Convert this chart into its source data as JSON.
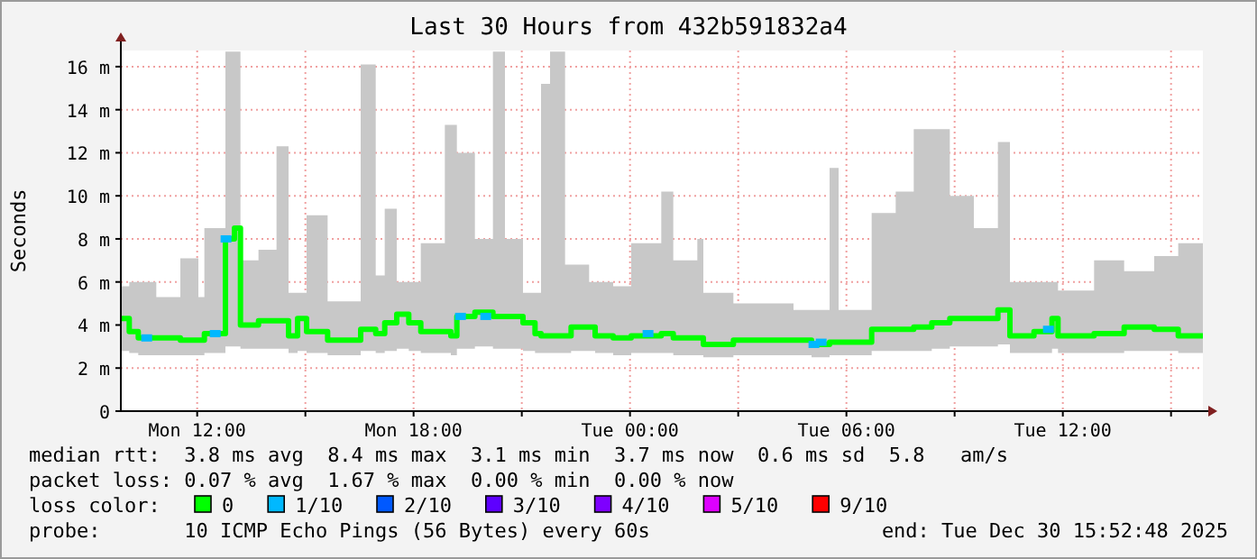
{
  "chart_data": {
    "type": "step",
    "title": "Last 30 Hours from 432b591832a4",
    "ylabel": "Seconds",
    "xlim": [
      "2025-12-29T09:53",
      "2025-12-30T15:53"
    ],
    "xticks": [
      {
        "value": "2025-12-29T12:00",
        "label": "Mon 12:00"
      },
      {
        "value": "2025-12-29T15:00",
        "label": null
      },
      {
        "value": "2025-12-29T18:00",
        "label": "Mon 18:00"
      },
      {
        "value": "2025-12-29T21:00",
        "label": null
      },
      {
        "value": "2025-12-30T00:00",
        "label": "Tue 00:00"
      },
      {
        "value": "2025-12-30T03:00",
        "label": null
      },
      {
        "value": "2025-12-30T06:00",
        "label": "Tue 06:00"
      },
      {
        "value": "2025-12-30T09:00",
        "label": null
      },
      {
        "value": "2025-12-30T12:00",
        "label": "Tue 12:00"
      },
      {
        "value": "2025-12-30T15:00",
        "label": null
      }
    ],
    "ylim": [
      0,
      16.75
    ],
    "yticks": [
      {
        "value": 0,
        "label": "0"
      },
      {
        "value": 2,
        "label": "2 m"
      },
      {
        "value": 4,
        "label": "4 m"
      },
      {
        "value": 6,
        "label": "6 m"
      },
      {
        "value": 8,
        "label": "8 m"
      },
      {
        "value": 10,
        "label": "10 m"
      },
      {
        "value": 12,
        "label": "12 m"
      },
      {
        "value": 14,
        "label": "14 m"
      },
      {
        "value": 16,
        "label": "16 m"
      }
    ],
    "grid": true,
    "legend": "bottom",
    "series": [
      {
        "name": "0",
        "color": "#00ff00",
        "x": [
          "2025-12-29T09:53",
          "2025-12-29T10:07",
          "2025-12-29T10:22",
          "2025-12-29T10:52",
          "2025-12-29T11:32",
          "2025-12-29T12:02",
          "2025-12-29T12:12",
          "2025-12-29T12:47",
          "2025-12-29T13:02",
          "2025-12-29T13:12",
          "2025-12-29T13:42",
          "2025-12-29T14:12",
          "2025-12-29T14:32",
          "2025-12-29T14:47",
          "2025-12-29T15:02",
          "2025-12-29T15:37",
          "2025-12-29T16:32",
          "2025-12-29T16:57",
          "2025-12-29T17:12",
          "2025-12-29T17:32",
          "2025-12-29T17:52",
          "2025-12-29T18:12",
          "2025-12-29T18:52",
          "2025-12-29T19:02",
          "2025-12-29T19:12",
          "2025-12-29T19:42",
          "2025-12-29T20:12",
          "2025-12-29T20:32",
          "2025-12-29T21:02",
          "2025-12-29T21:22",
          "2025-12-29T21:32",
          "2025-12-29T21:47",
          "2025-12-29T22:12",
          "2025-12-29T22:22",
          "2025-12-29T22:52",
          "2025-12-29T23:02",
          "2025-12-29T23:32",
          "2025-12-30T00:02",
          "2025-12-30T00:52",
          "2025-12-30T01:12",
          "2025-12-30T01:52",
          "2025-12-30T02:02",
          "2025-12-30T02:52",
          "2025-12-30T03:52",
          "2025-12-30T04:32",
          "2025-12-30T05:02",
          "2025-12-30T05:32",
          "2025-12-30T05:47",
          "2025-12-30T06:42",
          "2025-12-30T07:22",
          "2025-12-30T07:52",
          "2025-12-30T08:22",
          "2025-12-30T08:52",
          "2025-12-30T09:32",
          "2025-12-30T10:12",
          "2025-12-30T10:32",
          "2025-12-30T11:12",
          "2025-12-30T11:42",
          "2025-12-30T11:52",
          "2025-12-30T12:52",
          "2025-12-30T13:42",
          "2025-12-30T14:32",
          "2025-12-30T15:12",
          "2025-12-30T15:53"
        ],
        "values": [
          4.3,
          3.7,
          3.4,
          3.4,
          3.3,
          3.3,
          3.6,
          8.0,
          8.5,
          4.0,
          4.2,
          4.2,
          3.5,
          4.3,
          3.7,
          3.3,
          3.8,
          3.6,
          4.1,
          4.5,
          4.1,
          3.7,
          3.7,
          3.5,
          4.4,
          4.6,
          4.4,
          4.4,
          4.1,
          3.6,
          3.5,
          3.5,
          3.5,
          3.9,
          3.9,
          3.5,
          3.4,
          3.5,
          3.6,
          3.4,
          3.4,
          3.1,
          3.3,
          3.3,
          3.3,
          3.1,
          3.2,
          3.2,
          3.8,
          3.8,
          3.9,
          4.1,
          4.3,
          4.3,
          4.7,
          3.5,
          3.7,
          4.3,
          3.5,
          3.6,
          3.9,
          3.8,
          3.5,
          3.5
        ],
        "lower": [
          2.8,
          2.7,
          2.6,
          2.6,
          2.6,
          2.6,
          2.7,
          3.0,
          3.0,
          2.9,
          2.9,
          2.9,
          2.7,
          2.8,
          2.7,
          2.6,
          2.8,
          2.7,
          2.8,
          2.9,
          2.8,
          2.7,
          2.7,
          2.6,
          2.9,
          3.0,
          2.9,
          2.9,
          2.8,
          2.7,
          2.7,
          2.7,
          2.7,
          2.8,
          2.8,
          2.7,
          2.6,
          2.7,
          2.7,
          2.6,
          2.6,
          2.5,
          2.6,
          2.6,
          2.6,
          2.5,
          2.6,
          2.6,
          2.8,
          2.8,
          2.8,
          2.9,
          3.0,
          3.0,
          3.1,
          2.7,
          2.7,
          2.9,
          2.7,
          2.7,
          2.8,
          2.8,
          2.7,
          2.7
        ],
        "upper": [
          5.8,
          6.0,
          6.0,
          5.3,
          7.1,
          5.3,
          8.5,
          16.7,
          16.7,
          7.0,
          7.5,
          12.3,
          5.5,
          5.5,
          9.1,
          5.1,
          16.1,
          6.3,
          9.4,
          6.0,
          6.0,
          7.8,
          13.3,
          13.3,
          12.0,
          8.0,
          16.7,
          8.0,
          5.5,
          5.5,
          15.2,
          16.7,
          6.8,
          6.8,
          6.0,
          6.0,
          5.8,
          7.8,
          10.2,
          7.0,
          8.0,
          5.5,
          5.0,
          5.0,
          4.7,
          4.7,
          11.3,
          4.7,
          9.2,
          10.2,
          13.1,
          13.1,
          10.0,
          8.5,
          12.5,
          6.0,
          6.0,
          6.0,
          5.6,
          7.0,
          6.5,
          7.2,
          7.8,
          7.8
        ]
      },
      {
        "name": "1/10",
        "color": "#00b8ff",
        "type": "scatter",
        "marker": "square",
        "x": [
          "2025-12-29T10:36",
          "2025-12-29T12:30",
          "2025-12-29T12:48",
          "2025-12-29T19:18",
          "2025-12-29T20:00",
          "2025-12-30T00:30",
          "2025-12-30T05:06",
          "2025-12-30T05:18",
          "2025-12-30T11:36"
        ],
        "values": [
          3.4,
          3.6,
          8.0,
          4.4,
          4.4,
          3.6,
          3.1,
          3.2,
          3.8
        ]
      },
      {
        "name": "2/10",
        "color": "#0059ff",
        "type": "scatter",
        "marker": "square"
      },
      {
        "name": "3/10",
        "color": "#5e00ff",
        "type": "scatter",
        "marker": "square"
      },
      {
        "name": "4/10",
        "color": "#7e00ff",
        "type": "scatter",
        "marker": "square"
      },
      {
        "name": "5/10",
        "color": "#dd00ff",
        "type": "scatter",
        "marker": "square"
      },
      {
        "name": "9/10",
        "color": "#ff0000",
        "type": "scatter",
        "marker": "square"
      }
    ],
    "annotations": [
      "median rtt:  3.8 ms avg  8.4 ms max  3.1 ms min  3.7 ms now  0.6 ms sd  5.8   am/s",
      "packet loss: 0.07 % avg  1.67 % max  0.00 % min  0.00 % now",
      "loss color:",
      "probe:       10 ICMP Echo Pings (56 Bytes) every 60s",
      "end: Tue Dec 30 15:52:48 2025"
    ]
  }
}
